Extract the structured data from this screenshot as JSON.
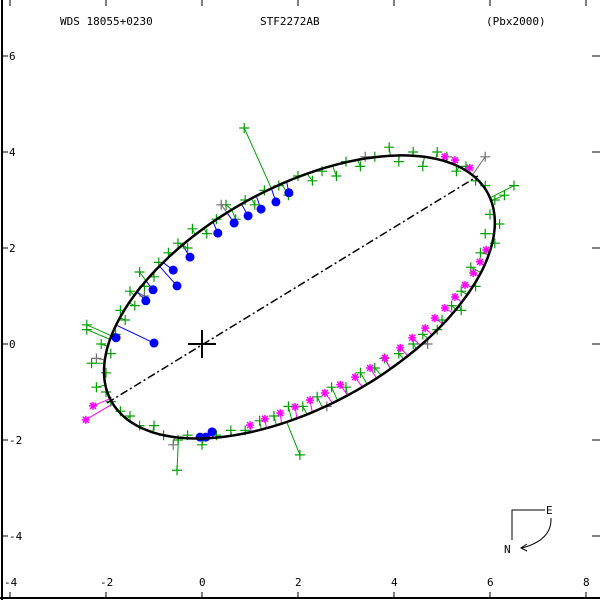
{
  "header": {
    "wds_id": "WDS 18055+0230",
    "system": "STF2272AB",
    "reference": "(Pbx2000)"
  },
  "compass": {
    "east": "E",
    "north": "N"
  },
  "colors": {
    "orbit": "#000000",
    "micrometer": "#00a000",
    "micrometer_low_weight": "#707070",
    "interferometry": "#0000ff",
    "speckle": "#ff00ff"
  },
  "chart_data": {
    "type": "scatter",
    "title": "STF2272AB",
    "xlim": [
      -4,
      8
    ],
    "ylim": [
      -5.5,
      6.5
    ],
    "xticks": [
      "-4",
      "-2",
      "0",
      "2",
      "4",
      "6",
      "8"
    ],
    "xtick_values": [
      -4,
      -2,
      0,
      2,
      4,
      6,
      8
    ],
    "yticks": [
      "6",
      "4",
      "2",
      "0",
      "-2",
      "-4"
    ],
    "ytick_values": [
      6,
      4,
      2,
      0,
      -2,
      -4
    ],
    "primary": [
      0,
      0
    ],
    "orbit_ellipse": {
      "center": [
        2.03,
        0.98
      ],
      "semi_major": 4.48,
      "semi_minor": 2.28,
      "angle_deg": 29
    },
    "line_of_apsides": [
      [
        -1.98,
        -1.23
      ],
      [
        5.75,
        3.5
      ]
    ],
    "series": [
      {
        "name": "micrometer",
        "marker": "plus",
        "points": [
          [
            -2.2,
            -0.9
          ],
          [
            -2.0,
            -0.6
          ],
          [
            -2.3,
            -0.4
          ],
          [
            -1.9,
            -0.2
          ],
          [
            -2.1,
            0.0
          ],
          [
            -1.8,
            0.2
          ],
          [
            -2.4,
            0.4
          ],
          [
            -1.6,
            0.5
          ],
          [
            -1.7,
            0.7
          ],
          [
            -1.4,
            0.8
          ],
          [
            -1.5,
            1.1
          ],
          [
            -1.2,
            1.2
          ],
          [
            -1.3,
            1.5
          ],
          [
            -1.0,
            1.4
          ],
          [
            -0.9,
            1.7
          ],
          [
            -0.7,
            1.9
          ],
          [
            -0.5,
            2.1
          ],
          [
            -0.3,
            2.0
          ],
          [
            -0.2,
            2.4
          ],
          [
            0.1,
            2.3
          ],
          [
            0.3,
            2.6
          ],
          [
            0.5,
            2.9
          ],
          [
            0.7,
            2.6
          ],
          [
            0.9,
            3.0
          ],
          [
            1.1,
            2.9
          ],
          [
            1.3,
            3.2
          ],
          [
            1.6,
            3.3
          ],
          [
            1.8,
            3.1
          ],
          [
            2.0,
            3.5
          ],
          [
            2.3,
            3.4
          ],
          [
            2.5,
            3.6
          ],
          [
            2.8,
            3.5
          ],
          [
            3.0,
            3.8
          ],
          [
            3.3,
            3.7
          ],
          [
            3.6,
            3.9
          ],
          [
            3.9,
            4.1
          ],
          [
            4.1,
            3.8
          ],
          [
            4.4,
            4.0
          ],
          [
            4.6,
            3.7
          ],
          [
            4.9,
            4.0
          ],
          [
            5.1,
            3.9
          ],
          [
            5.3,
            3.6
          ],
          [
            5.5,
            3.7
          ],
          [
            5.7,
            3.4
          ],
          [
            5.9,
            3.3
          ],
          [
            6.1,
            3.0
          ],
          [
            6.3,
            3.1
          ],
          [
            6.0,
            2.7
          ],
          [
            6.2,
            2.5
          ],
          [
            5.9,
            2.3
          ],
          [
            6.1,
            2.1
          ],
          [
            5.8,
            1.9
          ],
          [
            5.6,
            1.6
          ],
          [
            5.7,
            1.2
          ],
          [
            5.4,
            1.1
          ],
          [
            5.2,
            0.8
          ],
          [
            5.0,
            0.5
          ],
          [
            4.9,
            0.3
          ],
          [
            4.6,
            0.2
          ],
          [
            4.4,
            0.0
          ],
          [
            4.1,
            -0.2
          ],
          [
            3.8,
            -0.3
          ],
          [
            3.6,
            -0.5
          ],
          [
            3.3,
            -0.6
          ],
          [
            3.0,
            -0.9
          ],
          [
            2.7,
            -0.9
          ],
          [
            2.4,
            -1.1
          ],
          [
            2.1,
            -1.3
          ],
          [
            1.8,
            -1.3
          ],
          [
            1.5,
            -1.5
          ],
          [
            1.2,
            -1.6
          ],
          [
            0.9,
            -1.8
          ],
          [
            0.6,
            -1.8
          ],
          [
            0.3,
            -1.9
          ],
          [
            0.0,
            -2.1
          ],
          [
            -0.3,
            -1.9
          ],
          [
            -0.5,
            -2.0
          ],
          [
            -0.8,
            -1.9
          ],
          [
            -1.0,
            -1.7
          ],
          [
            -1.3,
            -1.7
          ],
          [
            -1.5,
            -1.5
          ],
          [
            -1.7,
            -1.4
          ],
          [
            -1.9,
            -1.2
          ],
          [
            -2.0,
            -1.0
          ],
          [
            0.88,
            4.5
          ],
          [
            2.04,
            -2.31
          ],
          [
            -0.52,
            -2.63
          ],
          [
            6.5,
            3.3
          ],
          [
            5.4,
            0.7
          ],
          [
            -2.4,
            0.3
          ]
        ]
      },
      {
        "name": "micrometer_low_weight",
        "marker": "plus",
        "points": [
          [
            -1.2,
            1.0
          ],
          [
            0.4,
            2.9
          ],
          [
            3.4,
            3.9
          ],
          [
            5.9,
            3.9
          ],
          [
            4.7,
            0.0
          ],
          [
            -0.6,
            -2.1
          ],
          [
            -2.2,
            -0.3
          ],
          [
            2.6,
            -1.3
          ]
        ]
      },
      {
        "name": "interferometry",
        "marker": "dot",
        "points": [
          [
            -1.79,
            0.13
          ],
          [
            -1.0,
            0.02
          ],
          [
            -1.17,
            0.9
          ],
          [
            -1.02,
            1.13
          ],
          [
            -0.52,
            1.21
          ],
          [
            -0.6,
            1.54
          ],
          [
            -0.25,
            1.81
          ],
          [
            0.33,
            2.31
          ],
          [
            0.67,
            2.52
          ],
          [
            0.96,
            2.67
          ],
          [
            1.23,
            2.81
          ],
          [
            1.54,
            2.96
          ],
          [
            1.81,
            3.15
          ],
          [
            -0.04,
            -1.94
          ],
          [
            0.08,
            -1.94
          ],
          [
            0.21,
            -1.83
          ]
        ]
      },
      {
        "name": "speckle",
        "marker": "star",
        "points": [
          [
            1.0,
            -1.69
          ],
          [
            1.31,
            -1.56
          ],
          [
            1.63,
            -1.44
          ],
          [
            1.94,
            -1.31
          ],
          [
            2.25,
            -1.17
          ],
          [
            2.56,
            -1.02
          ],
          [
            2.88,
            -0.85
          ],
          [
            3.19,
            -0.69
          ],
          [
            3.5,
            -0.5
          ],
          [
            3.81,
            -0.29
          ],
          [
            4.13,
            -0.08
          ],
          [
            4.38,
            0.13
          ],
          [
            4.65,
            0.33
          ],
          [
            4.85,
            0.54
          ],
          [
            5.06,
            0.75
          ],
          [
            5.27,
            0.98
          ],
          [
            5.48,
            1.23
          ],
          [
            5.65,
            1.48
          ],
          [
            5.79,
            1.71
          ],
          [
            5.92,
            1.96
          ],
          [
            -2.42,
            -1.58
          ],
          [
            -2.27,
            -1.29
          ],
          [
            5.27,
            3.83
          ],
          [
            5.58,
            3.67
          ],
          [
            5.06,
            3.9
          ]
        ]
      }
    ]
  }
}
